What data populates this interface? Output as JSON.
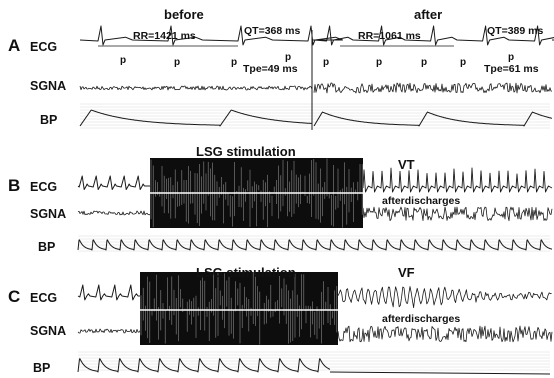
{
  "panelA": {
    "label": "A",
    "before_title": "before",
    "after_title": "after",
    "rows": {
      "ecg": "ECG",
      "sgna": "SGNA",
      "bp": "BP"
    },
    "before": {
      "rr": "RR=1421 ms",
      "qt": "QT=368 ms",
      "tpe": "Tpe=49 ms",
      "p": "p"
    },
    "after": {
      "rr": "RR=1061 ms",
      "qt": "QT=389 ms",
      "tpe": "Tpe=61 ms",
      "p": "p"
    }
  },
  "panelB": {
    "label": "B",
    "rows": {
      "ecg": "ECG",
      "sgna": "SGNA",
      "bp": "BP"
    },
    "stim_label": "LSG stimulation",
    "rhythm": "VT",
    "after_label": "afterdischarges"
  },
  "panelC": {
    "label": "C",
    "rows": {
      "ecg": "ECG",
      "sgna": "SGNA",
      "bp": "BP"
    },
    "stim_label": "LSG stimulation",
    "rhythm": "VF",
    "after_label": "afterdischarges"
  },
  "colors": {
    "trace": "#1a1a1a",
    "grid": "#d8d8d8",
    "stim": "#0d0d0d"
  }
}
